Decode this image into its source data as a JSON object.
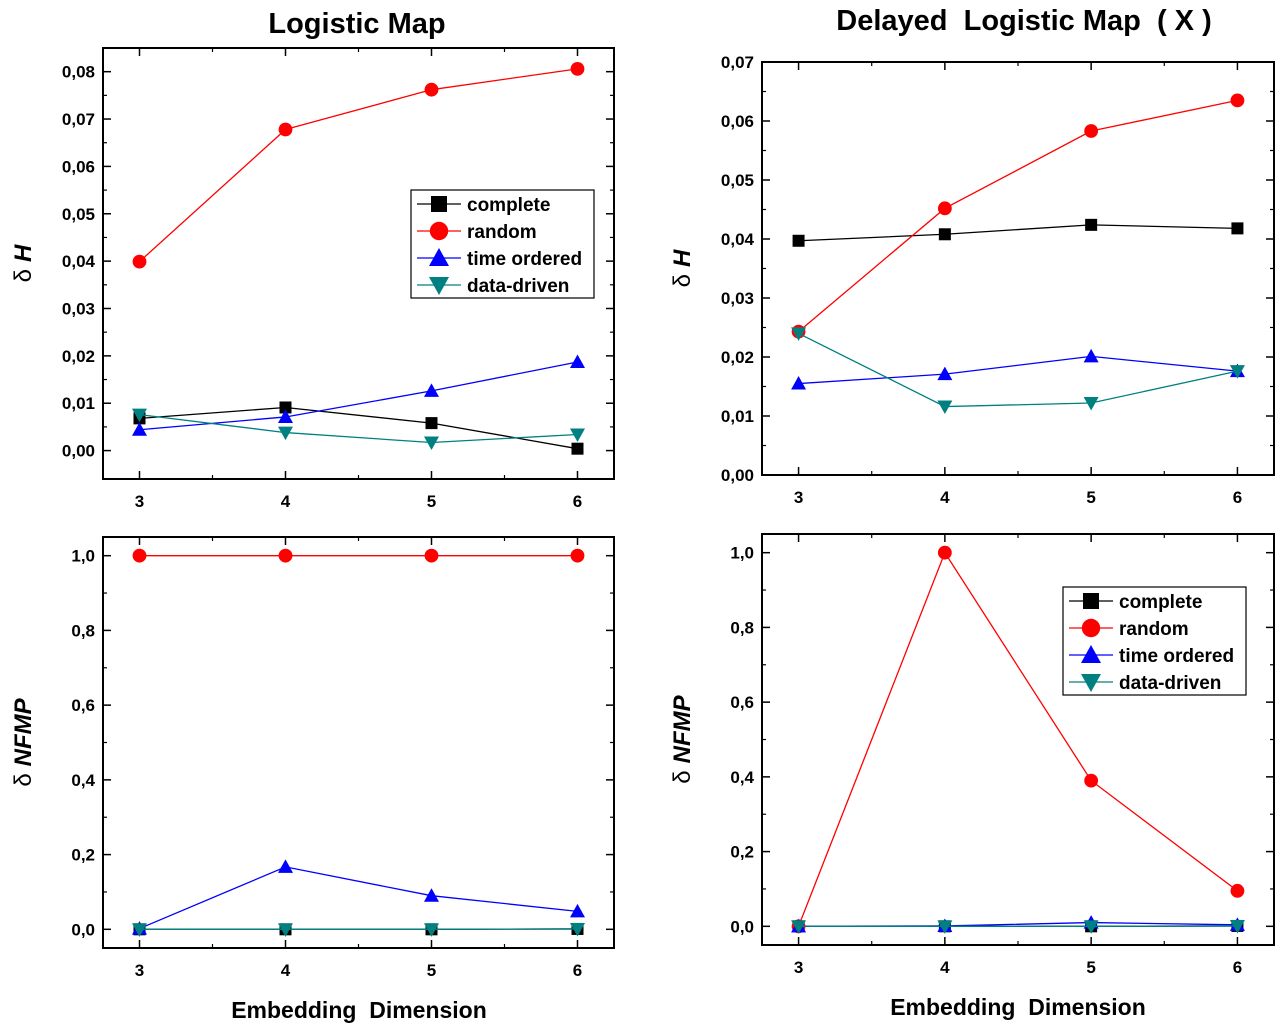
{
  "figure": {
    "left_title": "Logistic Map",
    "right_title": "Delayed  Logistic Map  ( X )",
    "xlabel_left": "Embedding  Dimension",
    "xlabel_right": "Embedding  Dimension",
    "colors": {
      "complete": "#000000",
      "random": "#ff0000",
      "time ordered": "#0000ff",
      "data-driven": "#008080"
    }
  },
  "chart_data": [
    {
      "type": "line",
      "panel": "top-left",
      "ylabel_symbol": "δ",
      "ylabel": "H",
      "x": [
        3,
        4,
        5,
        6
      ],
      "xticks": [
        "3",
        "4",
        "5",
        "6"
      ],
      "xlim": [
        2.75,
        6.25
      ],
      "ylim": [
        -0.006,
        0.085
      ],
      "yticks": [
        "0,00",
        "0,01",
        "0,02",
        "0,03",
        "0,04",
        "0,05",
        "0,06",
        "0,07",
        "0,08"
      ],
      "ytick_values": [
        0,
        0.01,
        0.02,
        0.03,
        0.04,
        0.05,
        0.06,
        0.07,
        0.08
      ],
      "legend": "right-middle",
      "series": [
        {
          "name": "complete",
          "marker": "square",
          "values": [
            0.0068,
            0.0091,
            0.0058,
            0.0004
          ]
        },
        {
          "name": "random",
          "marker": "circle",
          "values": [
            0.0399,
            0.0678,
            0.0762,
            0.0806
          ]
        },
        {
          "name": "time ordered",
          "marker": "triangle-up",
          "values": [
            0.0044,
            0.0071,
            0.0126,
            0.0187
          ]
        },
        {
          "name": "data-driven",
          "marker": "triangle-down",
          "values": [
            0.0076,
            0.0038,
            0.0017,
            0.0034
          ]
        }
      ]
    },
    {
      "type": "line",
      "panel": "top-right",
      "ylabel_symbol": "δ",
      "ylabel": "H",
      "x": [
        3,
        4,
        5,
        6
      ],
      "xticks": [
        "3",
        "4",
        "5",
        "6"
      ],
      "xlim": [
        2.75,
        6.25
      ],
      "ylim": [
        0,
        0.07
      ],
      "yticks": [
        "0,00",
        "0,01",
        "0,02",
        "0,03",
        "0,04",
        "0,05",
        "0,06",
        "0,07"
      ],
      "ytick_values": [
        0,
        0.01,
        0.02,
        0.03,
        0.04,
        0.05,
        0.06,
        0.07
      ],
      "series": [
        {
          "name": "complete",
          "marker": "square",
          "values": [
            0.0397,
            0.0408,
            0.0424,
            0.0418
          ]
        },
        {
          "name": "random",
          "marker": "circle",
          "values": [
            0.0243,
            0.0452,
            0.0583,
            0.0635
          ]
        },
        {
          "name": "time ordered",
          "marker": "triangle-up",
          "values": [
            0.0155,
            0.0171,
            0.0201,
            0.0176
          ]
        },
        {
          "name": "data-driven",
          "marker": "triangle-down",
          "values": [
            0.024,
            0.0116,
            0.0122,
            0.0176
          ]
        }
      ]
    },
    {
      "type": "line",
      "panel": "bottom-left",
      "ylabel_symbol": "δ",
      "ylabel": "NFMP",
      "x": [
        3,
        4,
        5,
        6
      ],
      "xticks": [
        "3",
        "4",
        "5",
        "6"
      ],
      "xlim": [
        2.75,
        6.25
      ],
      "ylim": [
        -0.05,
        1.05
      ],
      "yticks": [
        "0,0",
        "0,2",
        "0,4",
        "0,6",
        "0,8",
        "1,0"
      ],
      "ytick_values": [
        0,
        0.2,
        0.4,
        0.6,
        0.8,
        1.0
      ],
      "series": [
        {
          "name": "complete",
          "marker": "square",
          "values": [
            0.0,
            0.0,
            0.0,
            0.001
          ]
        },
        {
          "name": "random",
          "marker": "circle",
          "values": [
            1.0,
            1.0,
            1.0,
            1.0
          ]
        },
        {
          "name": "time ordered",
          "marker": "triangle-up",
          "values": [
            0.002,
            0.167,
            0.09,
            0.048
          ]
        },
        {
          "name": "data-driven",
          "marker": "triangle-down",
          "values": [
            0.0,
            0.0,
            0.0,
            0.001
          ]
        }
      ]
    },
    {
      "type": "line",
      "panel": "bottom-right",
      "ylabel_symbol": "δ",
      "ylabel": "NFMP",
      "x": [
        3,
        4,
        5,
        6
      ],
      "xticks": [
        "3",
        "4",
        "5",
        "6"
      ],
      "xlim": [
        2.75,
        6.25
      ],
      "ylim": [
        -0.05,
        1.05
      ],
      "yticks": [
        "0,0",
        "0,2",
        "0,4",
        "0,6",
        "0,8",
        "1,0"
      ],
      "ytick_values": [
        0,
        0.2,
        0.4,
        0.6,
        0.8,
        1.0
      ],
      "legend": "top-right",
      "series": [
        {
          "name": "complete",
          "marker": "square",
          "values": [
            0.0,
            0.0,
            0.0,
            0.001
          ]
        },
        {
          "name": "random",
          "marker": "circle",
          "values": [
            0.0,
            1.0,
            0.39,
            0.095
          ]
        },
        {
          "name": "time ordered",
          "marker": "triangle-up",
          "values": [
            0.0,
            0.001,
            0.01,
            0.004
          ]
        },
        {
          "name": "data-driven",
          "marker": "triangle-down",
          "values": [
            0.0,
            0.0,
            0.0,
            0.001
          ]
        }
      ]
    }
  ]
}
